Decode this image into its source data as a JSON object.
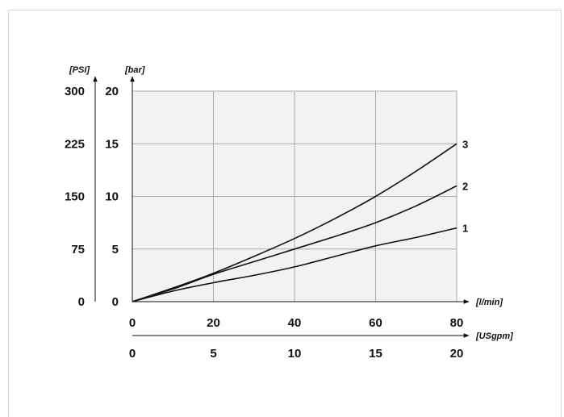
{
  "chart_data": {
    "type": "line",
    "x_axes": [
      {
        "unit": "[l/min]",
        "ticks": [
          "0",
          "20",
          "40",
          "60",
          "80"
        ],
        "range": [
          0,
          80
        ]
      },
      {
        "unit": "[USgpm]",
        "ticks": [
          "0",
          "5",
          "10",
          "15",
          "20"
        ],
        "range": [
          0,
          20
        ]
      }
    ],
    "y_axes": [
      {
        "unit": "[bar]",
        "ticks": [
          "0",
          "5",
          "10",
          "15",
          "20"
        ],
        "range": [
          0,
          20
        ]
      },
      {
        "unit": "[PSI]",
        "ticks": [
          "0",
          "75",
          "150",
          "225",
          "300"
        ],
        "range": [
          0,
          300
        ]
      }
    ],
    "grid": true,
    "plot_background": "#f1f2f1",
    "grid_color": "#aaaaaa",
    "line_color": "#111111",
    "series": [
      {
        "name": "1",
        "x": [
          0,
          10,
          20,
          30,
          40,
          50,
          60,
          70,
          80
        ],
        "y": [
          0,
          1.0,
          1.8,
          2.5,
          3.3,
          4.3,
          5.3,
          6.1,
          7.0
        ]
      },
      {
        "name": "2",
        "x": [
          0,
          10,
          20,
          30,
          40,
          50,
          60,
          70,
          80
        ],
        "y": [
          0,
          1.2,
          2.6,
          3.8,
          5.0,
          6.2,
          7.5,
          9.1,
          11.0
        ]
      },
      {
        "name": "3",
        "x": [
          0,
          10,
          20,
          30,
          40,
          50,
          60,
          70,
          80
        ],
        "y": [
          0,
          1.3,
          2.7,
          4.3,
          6.0,
          7.9,
          10.0,
          12.4,
          15.0
        ]
      }
    ]
  }
}
